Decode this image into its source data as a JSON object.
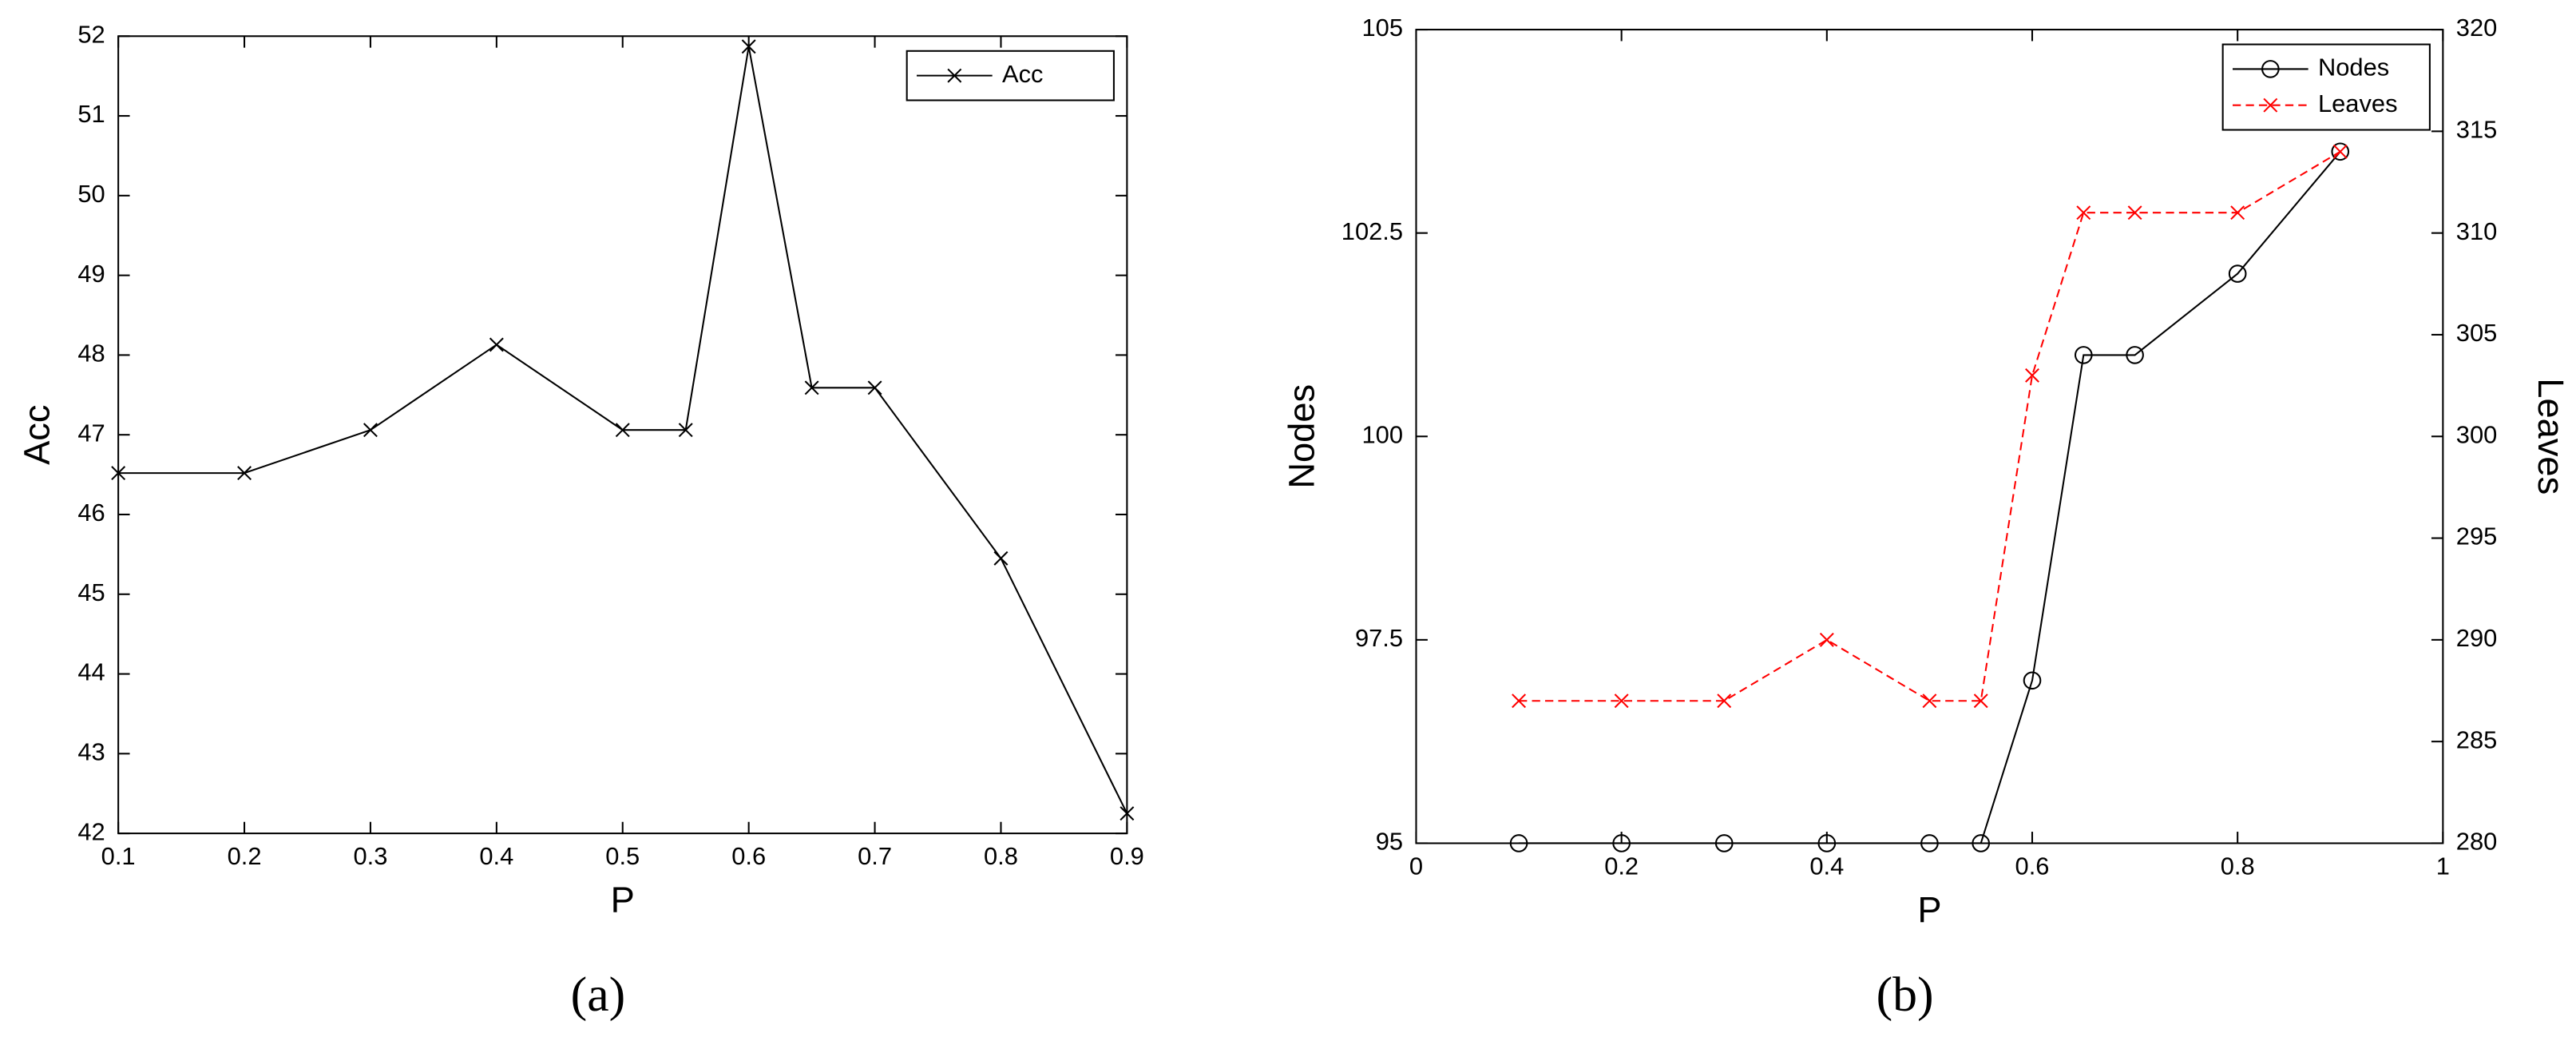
{
  "chart_data": [
    {
      "type": "line",
      "caption": "(a)",
      "xlabel": "P",
      "ylabel": "Acc",
      "x": [
        0.1,
        0.2,
        0.3,
        0.4,
        0.5,
        0.55,
        0.6,
        0.65,
        0.7,
        0.8,
        0.9
      ],
      "series": [
        {
          "name": "Acc",
          "color": "#000000",
          "line_style": "solid",
          "marker": "x",
          "values": [
            46.52,
            46.52,
            47.06,
            48.13,
            47.06,
            47.06,
            51.87,
            47.59,
            47.59,
            45.45,
            42.25
          ]
        }
      ],
      "xlim": [
        0.1,
        0.9
      ],
      "xticks": [
        0.1,
        0.2,
        0.3,
        0.4,
        0.5,
        0.6,
        0.7,
        0.8,
        0.9
      ],
      "ylim": [
        42,
        52
      ],
      "yticks": [
        42,
        43,
        44,
        45,
        46,
        47,
        48,
        49,
        50,
        51,
        52
      ],
      "legend": "upper right",
      "grid": false
    },
    {
      "type": "line",
      "caption": "(b)",
      "xlabel": "P",
      "ylabel": "Nodes",
      "y2label": "Leaves",
      "x": [
        0.1,
        0.2,
        0.3,
        0.4,
        0.5,
        0.55,
        0.6,
        0.65,
        0.7,
        0.8,
        0.9
      ],
      "series": [
        {
          "name": "Nodes",
          "color": "#000000",
          "line_style": "solid",
          "marker": "o",
          "values": [
            95,
            95,
            95,
            95,
            95,
            95,
            97,
            101,
            101,
            102,
            103.5
          ]
        },
        {
          "name": "Leaves",
          "color": "#ff0000",
          "line_style": "dashed",
          "marker": "x",
          "axis": "y2",
          "values": [
            287,
            287,
            287,
            290,
            287,
            287,
            303,
            311,
            311,
            311,
            314
          ]
        }
      ],
      "xlim": [
        0,
        1
      ],
      "xticks": [
        0,
        0.2,
        0.4,
        0.6,
        0.8,
        1
      ],
      "ylim": [
        95,
        105
      ],
      "yticks": [
        95,
        97.5,
        100,
        102.5,
        105
      ],
      "y2lim": [
        280,
        320
      ],
      "y2ticks": [
        280,
        285,
        290,
        295,
        300,
        305,
        310,
        315,
        320
      ],
      "legend": "upper right",
      "grid": false
    }
  ]
}
